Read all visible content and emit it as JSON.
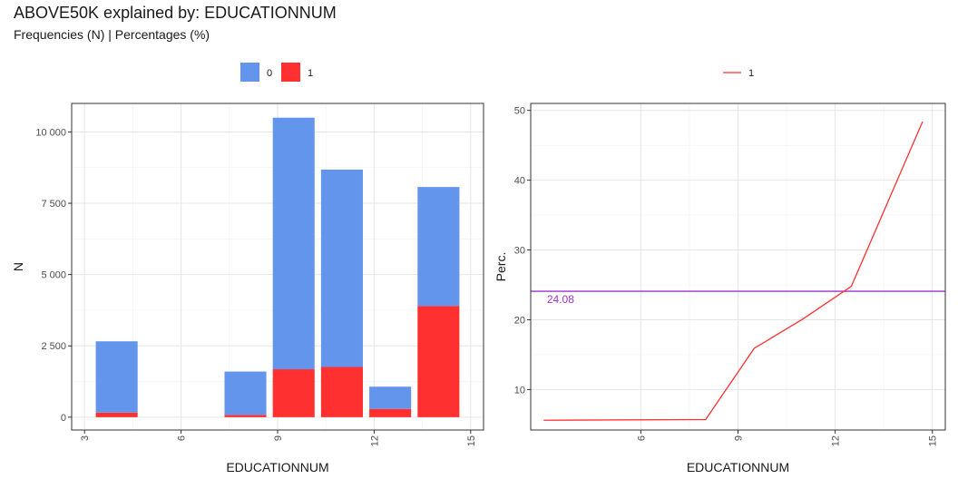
{
  "title": "ABOVE50K explained by: EDUCATIONNUM",
  "subtitle": "Frequencies (N) | Percentages (%)",
  "colors": {
    "class0": "#6495ED",
    "class1": "#FF3030",
    "reference": "#9A32CD"
  },
  "chart_data": [
    {
      "type": "bar",
      "stacked": true,
      "xlabel": "EDUCATIONNUM",
      "ylabel": "N",
      "xlim": [
        2.6,
        15.4
      ],
      "ylim": [
        -450,
        11000
      ],
      "xticks": [
        3,
        6,
        9,
        12,
        15
      ],
      "xtick_labels": [
        "3",
        "6",
        "9",
        "12",
        "15"
      ],
      "yticks": [
        0,
        2500,
        5000,
        7500,
        10000
      ],
      "ytick_labels": [
        "0",
        "2 500",
        "5 000",
        "7 500",
        "10 000"
      ],
      "grid": true,
      "legend": {
        "position": "top",
        "labels": [
          "0",
          "1"
        ]
      },
      "bar_width": 1.3,
      "x": [
        4.0,
        8.0,
        9.5,
        11.0,
        12.5,
        14.0
      ],
      "series": [
        {
          "name": "1",
          "values": [
            160,
            80,
            1680,
            1760,
            290,
            3900
          ]
        },
        {
          "name": "0",
          "values": [
            2500,
            1520,
            8820,
            6920,
            780,
            4170
          ]
        }
      ]
    },
    {
      "type": "line",
      "xlabel": "EDUCATIONNUM",
      "ylabel": "Perc.",
      "xlim": [
        2.6,
        15.4
      ],
      "ylim": [
        4.2,
        51
      ],
      "xticks": [
        6,
        9,
        12,
        15
      ],
      "xtick_labels": [
        "6",
        "9",
        "12",
        "15"
      ],
      "yticks": [
        10,
        20,
        30,
        40,
        50
      ],
      "ytick_labels": [
        "10",
        "20",
        "30",
        "40",
        "50"
      ],
      "grid": true,
      "legend": {
        "position": "top",
        "labels": [
          "1"
        ]
      },
      "series": [
        {
          "name": "1",
          "x": [
            3.0,
            8.0,
            9.5,
            11.0,
            12.5,
            14.7
          ],
          "values": [
            5.6,
            5.7,
            15.9,
            20.1,
            24.8,
            48.4
          ]
        }
      ],
      "reference_line": {
        "y": 24.08,
        "label": "24.08"
      }
    }
  ]
}
